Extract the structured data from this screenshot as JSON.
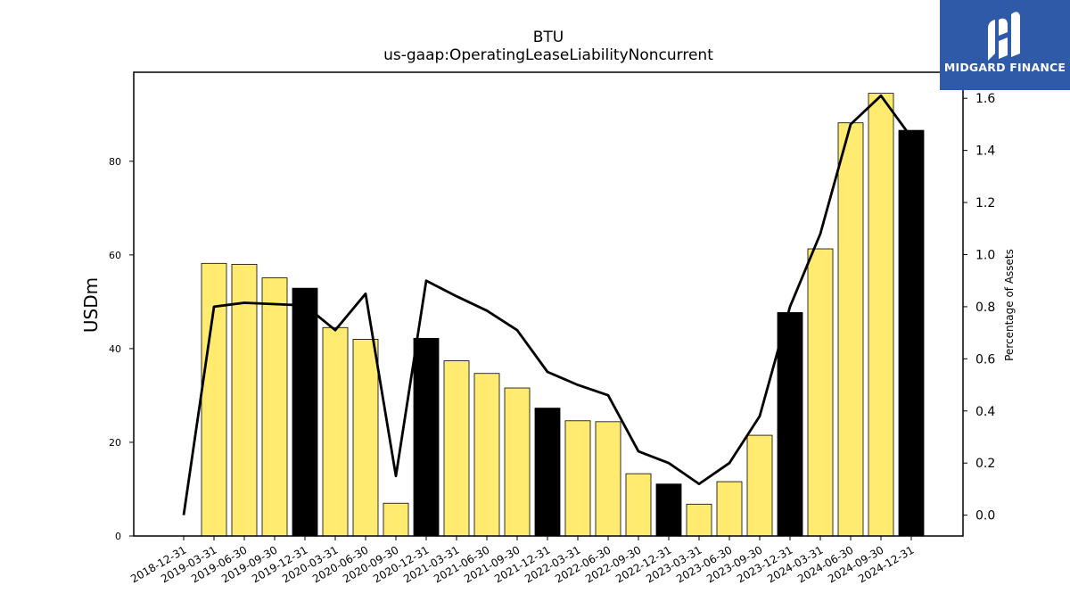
{
  "chart_data": {
    "type": "bar",
    "title": "BTU",
    "subtitle": "us-gaap:OperatingLeaseLiabilityNoncurrent",
    "ylabel": "USDm",
    "y2label": "Percentage of Assets",
    "ylim": [
      0,
      99
    ],
    "y2lim": [
      -0.08,
      1.7
    ],
    "yticks": [
      0,
      20,
      40,
      60,
      80
    ],
    "y2ticks": [
      0.0,
      0.2,
      0.4,
      0.6,
      0.8,
      1.0,
      1.2,
      1.4,
      1.6
    ],
    "categories": [
      "2018-12-31",
      "2019-03-31",
      "2019-06-30",
      "2019-09-30",
      "2019-12-31",
      "2020-03-31",
      "2020-06-30",
      "2020-09-30",
      "2020-12-31",
      "2021-03-31",
      "2021-06-30",
      "2021-09-30",
      "2021-12-31",
      "2022-03-31",
      "2022-06-30",
      "2022-09-30",
      "2022-12-31",
      "2023-03-31",
      "2023-06-30",
      "2023-09-30",
      "2023-12-31",
      "2024-03-31",
      "2024-06-30",
      "2024-09-30",
      "2024-12-31"
    ],
    "series": [
      {
        "type": "bar",
        "values": [
          null,
          58.2,
          58.0,
          55.1,
          52.9,
          44.5,
          42.0,
          7.0,
          42.2,
          37.4,
          34.7,
          31.6,
          27.3,
          24.6,
          24.4,
          13.3,
          11.1,
          6.8,
          11.6,
          21.5,
          47.7,
          61.3,
          88.2,
          94.5,
          86.6
        ],
        "annual_color": "#000000",
        "quarter_color": "#ffeb70"
      },
      {
        "type": "line",
        "axis": "right",
        "color": "#000000",
        "values": [
          0.0,
          0.8,
          0.815,
          0.81,
          0.805,
          0.71,
          0.85,
          0.15,
          0.9,
          0.84,
          0.785,
          0.71,
          0.55,
          0.5,
          0.46,
          0.245,
          0.2,
          0.12,
          0.2,
          0.38,
          0.8,
          1.08,
          1.5,
          1.61,
          1.45
        ]
      }
    ],
    "grid": false,
    "legend": "none"
  },
  "logo": {
    "text": "MIDGARD FINANCE",
    "icon": "midgard-logo-icon",
    "color": "#2f5aa8"
  }
}
